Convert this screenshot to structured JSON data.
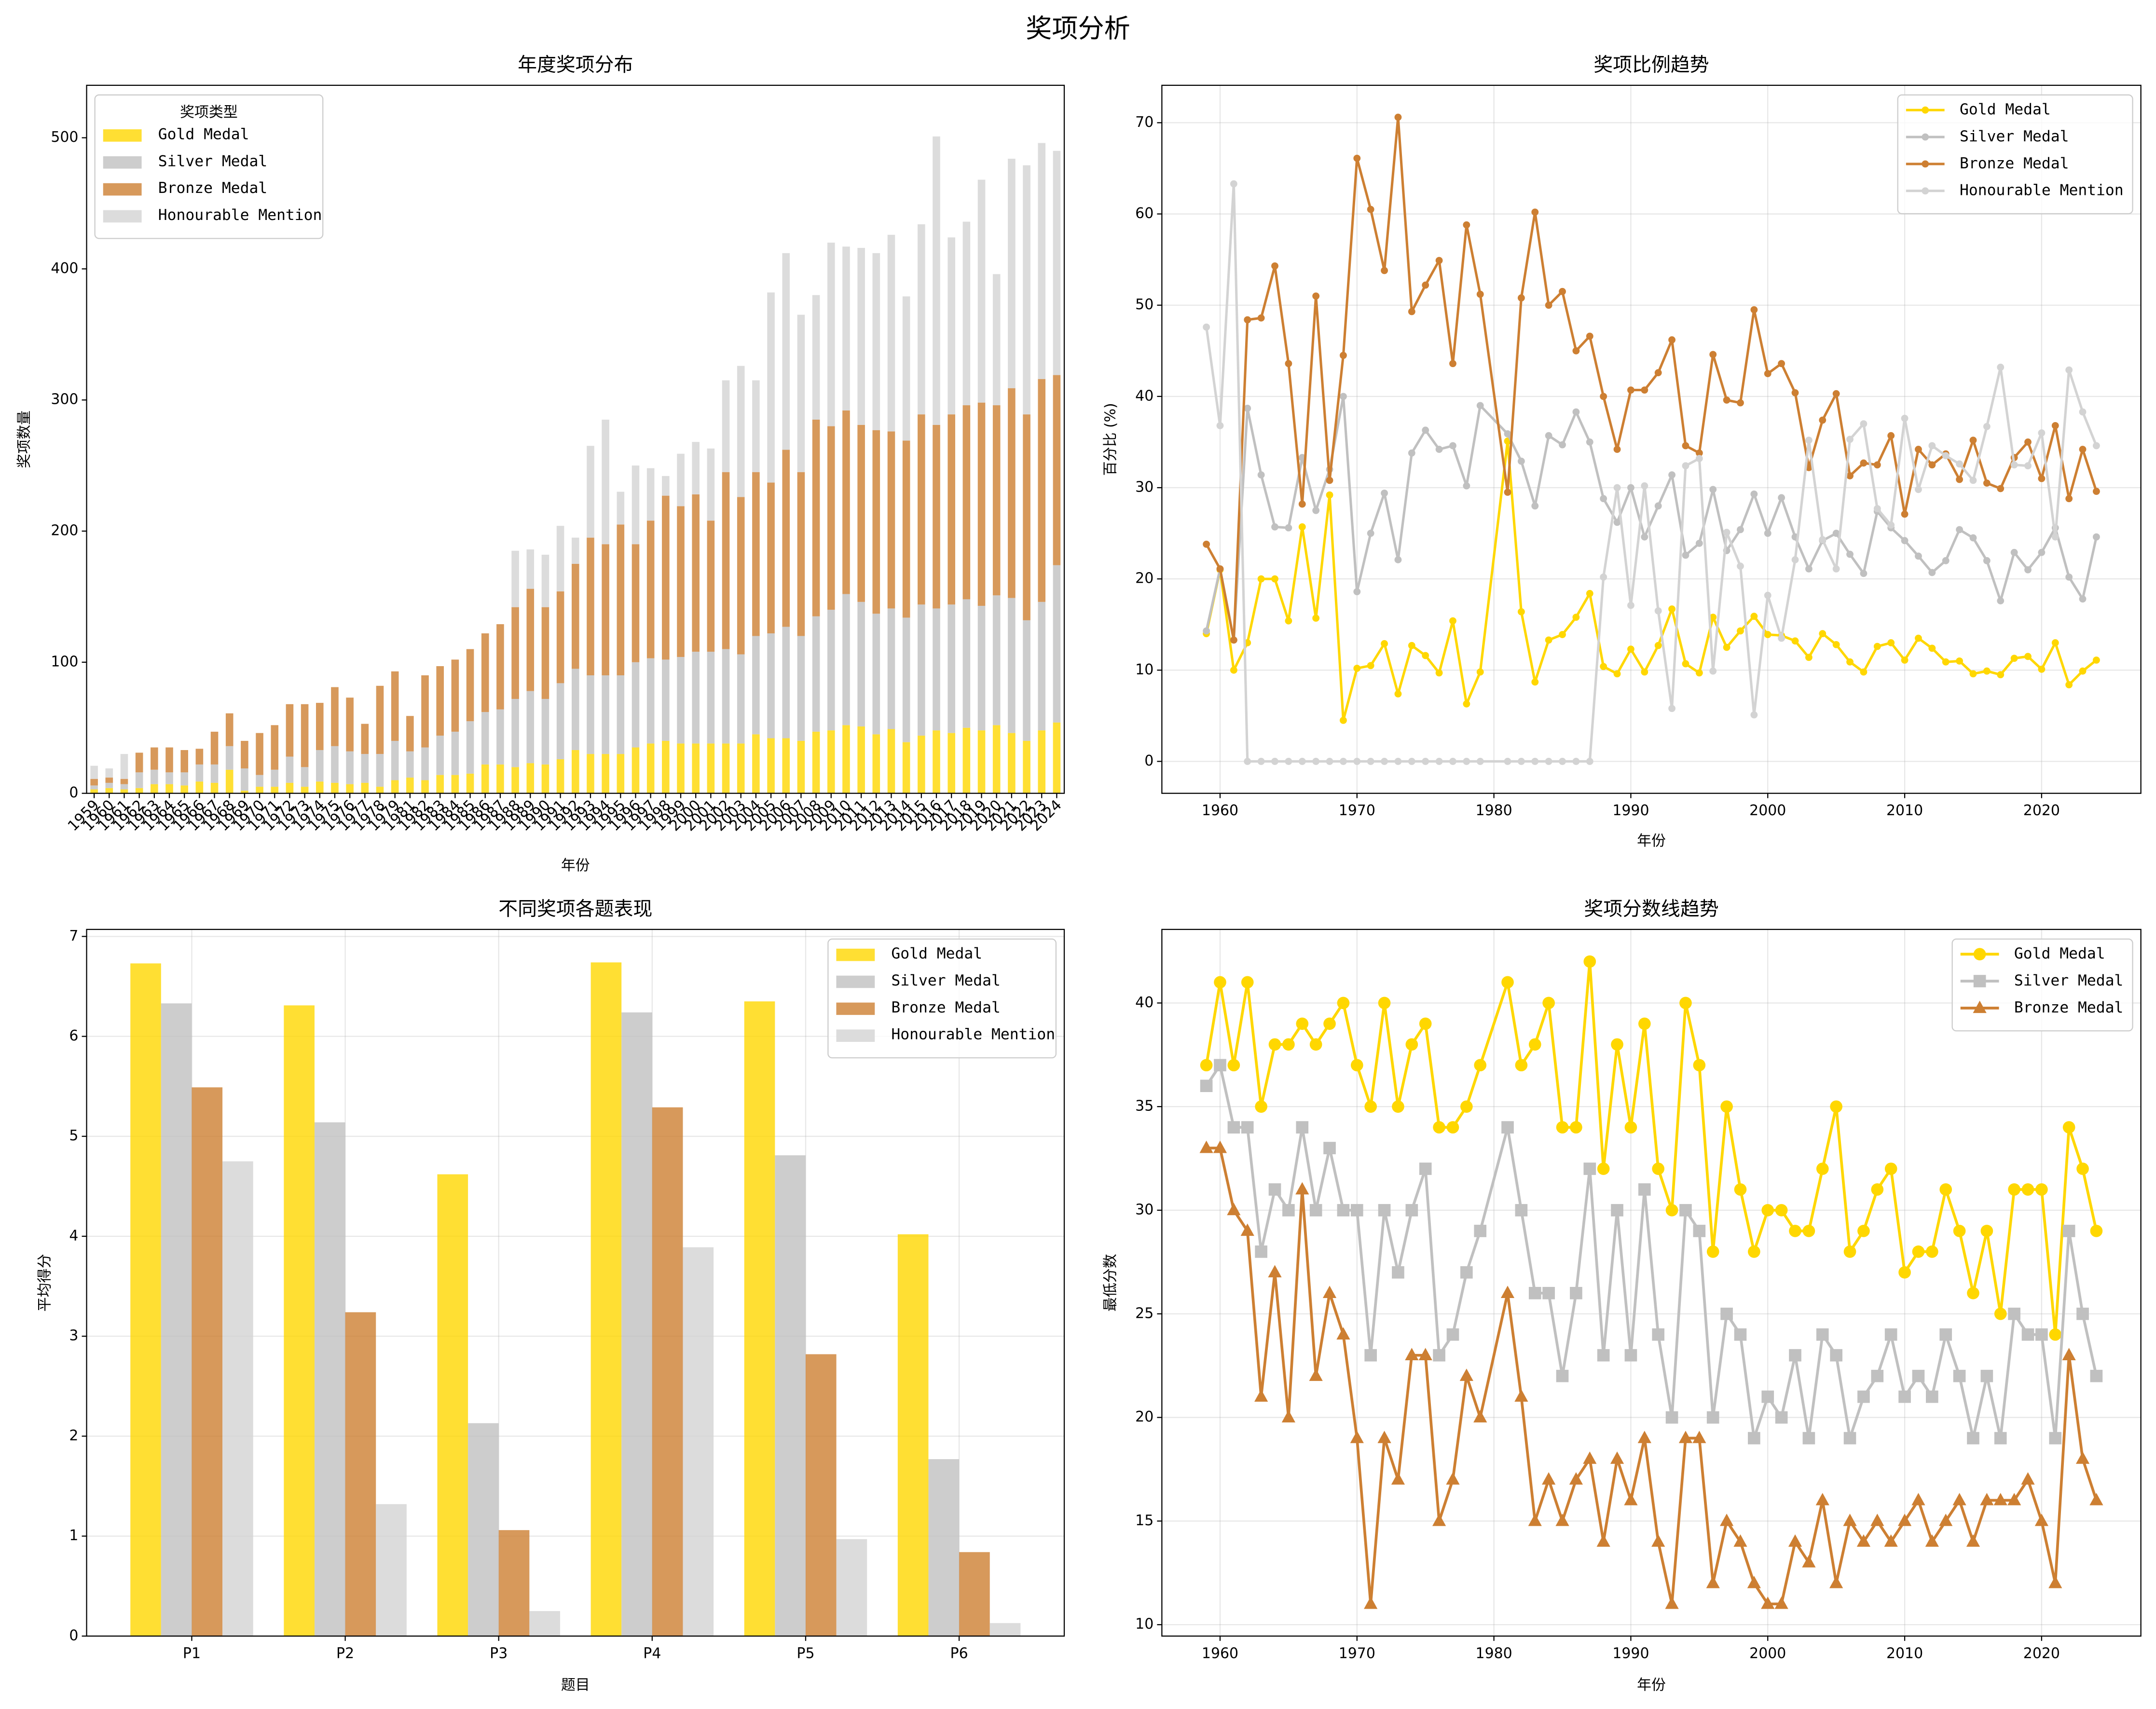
{
  "title": "奖项分析",
  "chart_data": [
    {
      "type": "bar",
      "stacked": true,
      "title": "年度奖项分布",
      "x_label": "年份",
      "y_label": "奖项数量",
      "categories": [
        "1959",
        "1960",
        "1961",
        "1962",
        "1963",
        "1964",
        "1965",
        "1966",
        "1967",
        "1968",
        "1969",
        "1970",
        "1971",
        "1972",
        "1973",
        "1974",
        "1975",
        "1976",
        "1977",
        "1978",
        "1979",
        "1981",
        "1982",
        "1983",
        "1984",
        "1985",
        "1986",
        "1987",
        "1988",
        "1989",
        "1990",
        "1991",
        "1992",
        "1993",
        "1994",
        "1995",
        "1996",
        "1997",
        "1998",
        "1999",
        "2000",
        "2001",
        "2002",
        "2003",
        "2004",
        "2005",
        "2006",
        "2007",
        "2008",
        "2009",
        "2010",
        "2011",
        "2012",
        "2013",
        "2014",
        "2015",
        "2016",
        "2017",
        "2018",
        "2019",
        "2020",
        "2021",
        "2022",
        "2023",
        "2024"
      ],
      "series": [
        {
          "name": "Gold Medal",
          "color": "#FFD700",
          "values": [
            3,
            4,
            3,
            4,
            7,
            7,
            6,
            9,
            8,
            18,
            2,
            5,
            5,
            8,
            5,
            9,
            8,
            7,
            8,
            5,
            10,
            12,
            10,
            14,
            14,
            15,
            22,
            22,
            20,
            23,
            22,
            26,
            33,
            30,
            30,
            30,
            35,
            38,
            40,
            38,
            38,
            38,
            38,
            38,
            45,
            42,
            42,
            40,
            47,
            48,
            52,
            51,
            45,
            49,
            39,
            44,
            48,
            46,
            50,
            48,
            52,
            46,
            40,
            48,
            54
          ]
        },
        {
          "name": "Silver Medal",
          "color": "#C0C0C0",
          "values": [
            3,
            4,
            4,
            12,
            11,
            9,
            10,
            13,
            14,
            18,
            17,
            9,
            13,
            20,
            15,
            24,
            28,
            25,
            22,
            25,
            30,
            20,
            25,
            30,
            33,
            40,
            40,
            42,
            52,
            55,
            50,
            58,
            62,
            60,
            60,
            60,
            65,
            65,
            62,
            66,
            70,
            70,
            72,
            68,
            75,
            80,
            85,
            80,
            88,
            92,
            100,
            95,
            92,
            92,
            95,
            100,
            93,
            98,
            98,
            95,
            99,
            103,
            92,
            98,
            120
          ]
        },
        {
          "name": "Bronze Medal",
          "color": "#CD7F32",
          "values": [
            5,
            4,
            4,
            15,
            17,
            19,
            17,
            12,
            25,
            25,
            21,
            32,
            34,
            40,
            48,
            36,
            45,
            41,
            23,
            52,
            53,
            27,
            55,
            53,
            55,
            55,
            60,
            65,
            70,
            78,
            70,
            70,
            80,
            105,
            100,
            115,
            90,
            105,
            125,
            115,
            120,
            100,
            135,
            120,
            125,
            115,
            135,
            125,
            150,
            140,
            140,
            135,
            140,
            135,
            135,
            145,
            140,
            145,
            148,
            155,
            145,
            160,
            157,
            170,
            145
          ]
        },
        {
          "name": "Honourable Mention",
          "color": "#D3D3D3",
          "values": [
            10,
            7,
            19,
            0,
            0,
            0,
            0,
            0,
            0,
            0,
            0,
            0,
            0,
            0,
            0,
            0,
            0,
            0,
            0,
            0,
            0,
            0,
            0,
            0,
            0,
            0,
            0,
            0,
            43,
            30,
            40,
            50,
            20,
            70,
            95,
            25,
            60,
            40,
            15,
            40,
            40,
            55,
            70,
            100,
            70,
            145,
            150,
            120,
            95,
            140,
            125,
            135,
            135,
            150,
            110,
            145,
            220,
            135,
            140,
            170,
            100,
            175,
            190,
            180,
            171
          ]
        }
      ],
      "ylim": [
        0,
        540
      ],
      "yticks": [
        0,
        100,
        200,
        300,
        400,
        500
      ],
      "grid": false,
      "legend": "upper left",
      "legend_title": "奖项类型"
    },
    {
      "type": "line",
      "title": "奖项比例趋势",
      "x_label": "年份",
      "y_label": "百分比 (%)",
      "x": [
        1959,
        1960,
        1961,
        1962,
        1963,
        1964,
        1965,
        1966,
        1967,
        1968,
        1969,
        1970,
        1971,
        1972,
        1973,
        1974,
        1975,
        1976,
        1977,
        1978,
        1979,
        1981,
        1982,
        1983,
        1984,
        1985,
        1986,
        1987,
        1988,
        1989,
        1990,
        1991,
        1992,
        1993,
        1994,
        1995,
        1996,
        1997,
        1998,
        1999,
        2000,
        2001,
        2002,
        2003,
        2004,
        2005,
        2006,
        2007,
        2008,
        2009,
        2010,
        2011,
        2012,
        2013,
        2014,
        2015,
        2016,
        2017,
        2018,
        2019,
        2020,
        2021,
        2022,
        2023,
        2024
      ],
      "series": [
        {
          "name": "Gold Medal",
          "color": "#FFD700",
          "marker": "o",
          "values": [
            14,
            21,
            10,
            13,
            20,
            20,
            15.4,
            25.7,
            15.7,
            29.2,
            4.5,
            10.2,
            10.5,
            12.9,
            7.4,
            12.7,
            11.6,
            9.7,
            15.4,
            6.3,
            9.8,
            35.1,
            16.4,
            8.7,
            13.3,
            13.9,
            15.8,
            18.4,
            10.4,
            9.6,
            12.3,
            9.8,
            12.7,
            16.7,
            10.7,
            9.7,
            15.8,
            12.5,
            14.3,
            15.9,
            13.9,
            13.8,
            13.2,
            11.4,
            14,
            12.8,
            10.9,
            9.8,
            12.6,
            13,
            11.1,
            13.5,
            12.4,
            10.9,
            11,
            9.6,
            9.9,
            9.5,
            11.3,
            11.5,
            10.1,
            13,
            8.4,
            9.9,
            11.1
          ]
        },
        {
          "name": "Silver Medal",
          "color": "#C0C0C0",
          "marker": "o",
          "values": [
            14.3,
            21.1,
            13.3,
            38.7,
            31.4,
            25.7,
            25.6,
            33.3,
            27.5,
            32,
            40,
            18.6,
            25,
            29.4,
            22.1,
            33.8,
            36.3,
            34.2,
            34.6,
            30.2,
            39,
            35.9,
            32.9,
            28,
            35.7,
            34.7,
            38.3,
            35,
            28.8,
            26.2,
            30,
            24.6,
            28,
            31.4,
            22.6,
            23.9,
            29.8,
            23.1,
            25.4,
            29.3,
            25,
            28.9,
            24.6,
            21.1,
            24.2,
            25,
            22.7,
            20.6,
            27.4,
            25.6,
            24.2,
            22.5,
            20.7,
            22,
            25.4,
            24.5,
            22,
            17.6,
            22.9,
            21,
            22.9,
            25.6,
            20.2,
            17.8,
            24.6
          ]
        },
        {
          "name": "Bronze Medal",
          "color": "#CD7F32",
          "marker": "o",
          "values": [
            23.8,
            21.1,
            13.3,
            48.4,
            48.6,
            54.3,
            43.6,
            28.2,
            51,
            30.8,
            44.5,
            66.1,
            60.5,
            53.8,
            70.6,
            49.3,
            52.2,
            54.9,
            43.6,
            58.8,
            51.2,
            29.5,
            50.8,
            60.2,
            50,
            51.5,
            45,
            46.6,
            40,
            34.2,
            40.7,
            40.7,
            42.6,
            46.2,
            34.6,
            33.8,
            44.6,
            39.6,
            39.3,
            49.5,
            42.5,
            43.6,
            40.4,
            32.2,
            37.4,
            40.3,
            31.3,
            32.7,
            32.5,
            35.7,
            27.1,
            34.2,
            32.5,
            33.7,
            30.9,
            35.2,
            30.5,
            29.9,
            33.3,
            35,
            31,
            36.8,
            28.8,
            34.2,
            29.6
          ]
        },
        {
          "name": "Honourable Mention",
          "color": "#D3D3D3",
          "marker": "o",
          "values": [
            47.6,
            36.8,
            63.3,
            0,
            0,
            0,
            0,
            0,
            0,
            0,
            0,
            0,
            0,
            0,
            0,
            0,
            0,
            0,
            0,
            0,
            0,
            0,
            0,
            0,
            0,
            0,
            0,
            0,
            20.2,
            30,
            17.1,
            30.2,
            16.5,
            5.8,
            32.4,
            33.2,
            9.9,
            25.1,
            21.4,
            5.1,
            18.2,
            13.5,
            22.1,
            35.2,
            24.3,
            21.1,
            35.3,
            37,
            27.7,
            25.9,
            37.6,
            29.8,
            34.6,
            33.5,
            32.6,
            30.8,
            36.7,
            43.2,
            32.5,
            32.4,
            36,
            24.6,
            42.9,
            38.3,
            34.6
          ]
        }
      ],
      "xlim": [
        1955.75,
        2027.25
      ],
      "xticks": [
        1960,
        1970,
        1980,
        1990,
        2000,
        2010,
        2020
      ],
      "ylim": [
        -3.5,
        74.1
      ],
      "yticks": [
        0,
        10,
        20,
        30,
        40,
        50,
        60,
        70
      ],
      "grid": true,
      "legend": "upper right"
    },
    {
      "type": "bar",
      "stacked": false,
      "title": "不同奖项各题表现",
      "x_label": "题目",
      "y_label": "平均得分",
      "categories": [
        "P1",
        "P2",
        "P3",
        "P4",
        "P5",
        "P6"
      ],
      "series": [
        {
          "name": "Gold Medal",
          "color": "#FFD700",
          "values": [
            6.73,
            6.31,
            4.62,
            6.74,
            6.35,
            4.02
          ]
        },
        {
          "name": "Silver Medal",
          "color": "#C0C0C0",
          "values": [
            6.33,
            5.14,
            2.13,
            6.24,
            4.81,
            1.77
          ]
        },
        {
          "name": "Bronze Medal",
          "color": "#CD7F32",
          "values": [
            5.49,
            3.24,
            1.06,
            5.29,
            2.82,
            0.84
          ]
        },
        {
          "name": "Honourable Mention",
          "color": "#D3D3D3",
          "values": [
            4.75,
            1.32,
            0.25,
            3.89,
            0.97,
            0.13
          ]
        }
      ],
      "ylim": [
        0,
        7.07
      ],
      "yticks": [
        0,
        1,
        2,
        3,
        4,
        5,
        6,
        7
      ],
      "grid": true,
      "legend": "upper right"
    },
    {
      "type": "line",
      "title": "奖项分数线趋势",
      "x_label": "年份",
      "y_label": "最低分数",
      "x": [
        1959,
        1960,
        1961,
        1962,
        1963,
        1964,
        1965,
        1966,
        1967,
        1968,
        1969,
        1970,
        1971,
        1972,
        1973,
        1974,
        1975,
        1976,
        1977,
        1978,
        1979,
        1981,
        1982,
        1983,
        1984,
        1985,
        1986,
        1987,
        1988,
        1989,
        1990,
        1991,
        1992,
        1993,
        1994,
        1995,
        1996,
        1997,
        1998,
        1999,
        2000,
        2001,
        2002,
        2003,
        2004,
        2005,
        2006,
        2007,
        2008,
        2009,
        2010,
        2011,
        2012,
        2013,
        2014,
        2015,
        2016,
        2017,
        2018,
        2019,
        2020,
        2021,
        2022,
        2023,
        2024
      ],
      "series": [
        {
          "name": "Gold Medal",
          "color": "#FFD700",
          "marker": "o",
          "values": [
            37,
            41,
            37,
            41,
            35,
            38,
            38,
            39,
            38,
            39,
            40,
            37,
            35,
            40,
            35,
            38,
            39,
            34,
            34,
            35,
            37,
            41,
            37,
            38,
            40,
            34,
            34,
            42,
            32,
            38,
            34,
            39,
            32,
            30,
            40,
            37,
            28,
            35,
            31,
            28,
            30,
            30,
            29,
            29,
            32,
            35,
            28,
            29,
            31,
            32,
            27,
            28,
            28,
            31,
            29,
            26,
            29,
            25,
            31,
            31,
            31,
            24,
            34,
            32,
            29
          ]
        },
        {
          "name": "Silver Medal",
          "color": "#C0C0C0",
          "marker": "s",
          "values": [
            36,
            37,
            34,
            34,
            28,
            31,
            30,
            34,
            30,
            33,
            30,
            30,
            23,
            30,
            27,
            30,
            32,
            23,
            24,
            27,
            29,
            34,
            30,
            26,
            26,
            22,
            26,
            32,
            23,
            30,
            23,
            31,
            24,
            20,
            30,
            29,
            20,
            25,
            24,
            19,
            21,
            20,
            23,
            19,
            24,
            23,
            19,
            21,
            22,
            24,
            21,
            22,
            21,
            24,
            22,
            19,
            22,
            19,
            25,
            24,
            24,
            19,
            29,
            25,
            22
          ]
        },
        {
          "name": "Bronze Medal",
          "color": "#CD7F32",
          "marker": "^",
          "values": [
            33,
            33,
            30,
            29,
            21,
            27,
            20,
            31,
            22,
            26,
            24,
            19,
            11,
            19,
            17,
            23,
            23,
            15,
            17,
            22,
            20,
            26,
            21,
            15,
            17,
            15,
            17,
            18,
            14,
            18,
            16,
            19,
            14,
            11,
            19,
            19,
            12,
            15,
            14,
            12,
            11,
            11,
            14,
            13,
            16,
            12,
            15,
            14,
            15,
            14,
            15,
            16,
            14,
            15,
            16,
            14,
            16,
            16,
            16,
            17,
            15,
            12,
            23,
            18,
            16
          ]
        }
      ],
      "xlim": [
        1955.75,
        2027.25
      ],
      "xticks": [
        1960,
        1970,
        1980,
        1990,
        2000,
        2010,
        2020
      ],
      "ylim": [
        9.45,
        43.55
      ],
      "yticks": [
        10,
        15,
        20,
        25,
        30,
        35,
        40
      ],
      "grid": true,
      "legend": "upper right"
    }
  ]
}
